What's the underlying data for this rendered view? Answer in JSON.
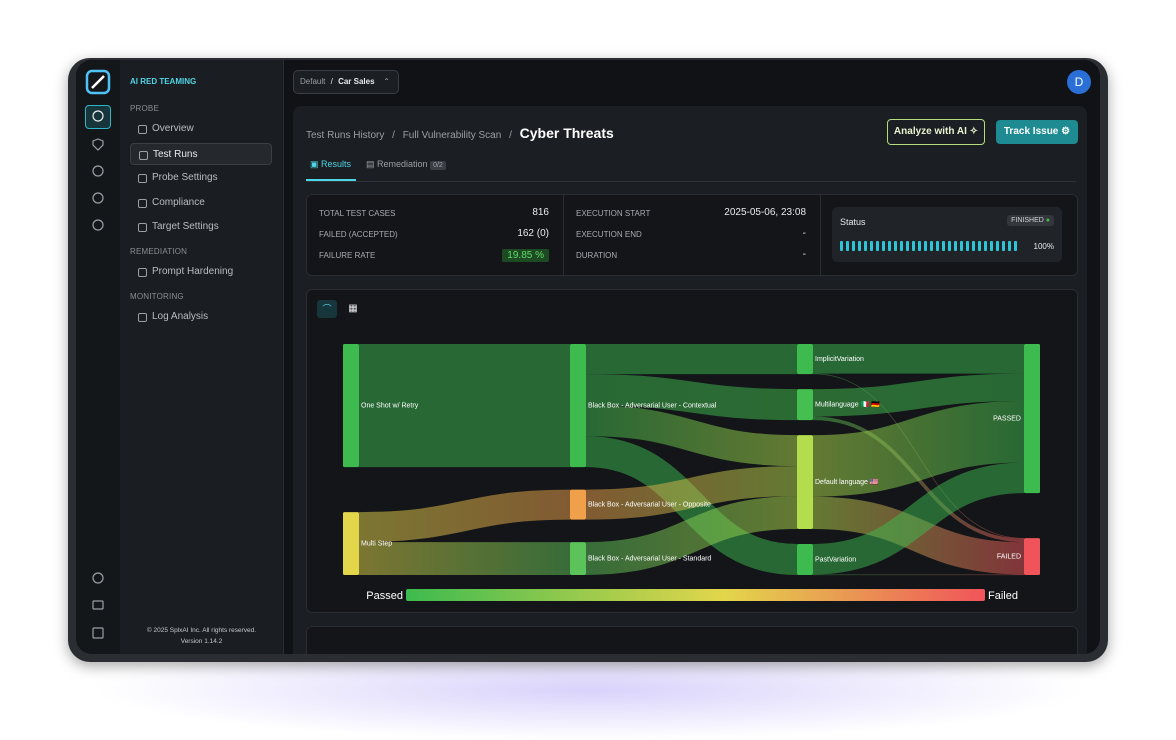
{
  "sidebar": {
    "brand": "AI RED TEAMING",
    "sections": [
      {
        "title": "PROBE",
        "items": [
          "Overview",
          "Test Runs",
          "Probe Settings",
          "Compliance",
          "Target Settings"
        ]
      },
      {
        "title": "REMEDIATION",
        "items": [
          "Prompt Hardening"
        ]
      },
      {
        "title": "MONITORING",
        "items": [
          "Log Analysis"
        ]
      }
    ],
    "copyright": "© 2025 SplxAI Inc. All rights reserved.",
    "version": "Version 1.14.2"
  },
  "topbar": {
    "workspace": "Default",
    "separator": "/",
    "project": "Car Sales",
    "avatar": "D"
  },
  "header": {
    "breadcrumbs": [
      "Test Runs History",
      "Full Vulnerability Scan",
      "Cyber Threats"
    ],
    "separator": "/",
    "buttons": [
      "Analyze with AI",
      "Track Issue"
    ]
  },
  "tabs": [
    {
      "label": "Results"
    },
    {
      "label": "Remediation",
      "badge": "0/2"
    }
  ],
  "stats": [
    {
      "label": "TOTAL TEST CASES",
      "value": 816
    },
    {
      "label": "FAILED (ACCEPTED)",
      "value": "162 (0)"
    },
    {
      "label": "FAILURE RATE",
      "value": "19.85 %"
    },
    {
      "label": "EXECUTION START",
      "value": "2025-05-06, 23:08"
    },
    {
      "label": "EXECUTION END",
      "value": "-"
    },
    {
      "label": "DURATION",
      "value": "-"
    }
  ],
  "status": {
    "title": "Status",
    "state": "FINISHED",
    "progress": "100%"
  },
  "chart_data": {
    "type": "sankey",
    "nodes": [
      {
        "name": "One Shot w/ Retry",
        "color": "#3dbb4f"
      },
      {
        "name": "Multi Step",
        "color": "#e3d64b"
      },
      {
        "name": "Black Box - Adversarial User - Contextual",
        "color": "#3dbb4f"
      },
      {
        "name": "Black Box - Adversarial User - Opposite",
        "color": "#f0a04b"
      },
      {
        "name": "Black Box - Adversarial User - Standard",
        "color": "#5cc35a"
      },
      {
        "name": "ImplicitVariation",
        "color": "#3dbb4f"
      },
      {
        "name": "Multilanguage 🇮🇹 🇩🇪",
        "color": "#45bf50"
      },
      {
        "name": "Default language 🇺🇸",
        "color": "#b4dd4e"
      },
      {
        "name": "PastVariation",
        "color": "#3dbb4f"
      },
      {
        "name": "PASSED",
        "color": "#3dbb4f"
      },
      {
        "name": "FAILED",
        "color": "#f0545a"
      }
    ],
    "links": [
      {
        "source": 0,
        "target": 2,
        "value": 540
      },
      {
        "source": 1,
        "target": 3,
        "value": 132
      },
      {
        "source": 1,
        "target": 4,
        "value": 144
      },
      {
        "source": 2,
        "target": 5,
        "value": 132
      },
      {
        "source": 2,
        "target": 6,
        "value": 136
      },
      {
        "source": 2,
        "target": 7,
        "value": 136
      },
      {
        "source": 2,
        "target": 8,
        "value": 136
      },
      {
        "source": 3,
        "target": 7,
        "value": 132
      },
      {
        "source": 4,
        "target": 7,
        "value": 144
      },
      {
        "source": 5,
        "target": 9,
        "value": 130
      },
      {
        "source": 5,
        "target": 10,
        "value": 2
      },
      {
        "source": 6,
        "target": 9,
        "value": 120
      },
      {
        "source": 6,
        "target": 10,
        "value": 16
      },
      {
        "source": 7,
        "target": 9,
        "value": 270
      },
      {
        "source": 7,
        "target": 10,
        "value": 142
      },
      {
        "source": 8,
        "target": 9,
        "value": 134
      },
      {
        "source": 8,
        "target": 10,
        "value": 2
      }
    ],
    "legend": [
      "Passed",
      "Failed"
    ]
  }
}
